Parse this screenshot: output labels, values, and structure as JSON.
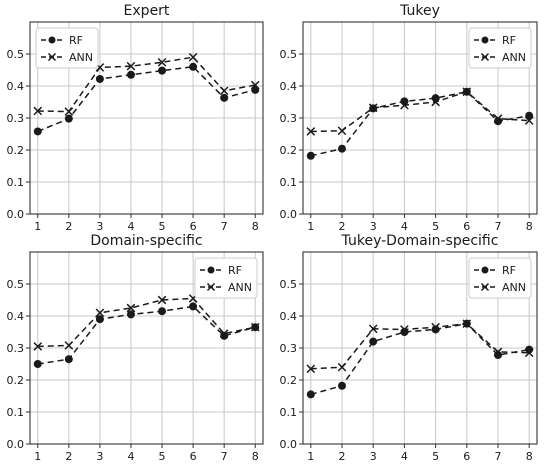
{
  "chart_data": [
    {
      "type": "line",
      "title": "Expert",
      "x": [
        1,
        2,
        3,
        4,
        5,
        6,
        7,
        8
      ],
      "ylim": [
        0.0,
        0.6
      ],
      "yticks": [
        "0.0",
        "0.1",
        "0.2",
        "0.3",
        "0.4",
        "0.5"
      ],
      "grid": true,
      "legend": "top-left",
      "series": [
        {
          "name": "RF",
          "marker": "circle",
          "values": [
            0.258,
            0.298,
            0.422,
            0.435,
            0.448,
            0.46,
            0.363,
            0.388
          ]
        },
        {
          "name": "ANN",
          "marker": "x",
          "values": [
            0.322,
            0.32,
            0.458,
            0.462,
            0.474,
            0.49,
            0.385,
            0.403
          ]
        }
      ]
    },
    {
      "type": "line",
      "title": "Tukey",
      "x": [
        1,
        2,
        3,
        4,
        5,
        6,
        7,
        8
      ],
      "ylim": [
        0.0,
        0.6
      ],
      "yticks": [
        "0.0",
        "0.1",
        "0.2",
        "0.3",
        "0.4",
        "0.5"
      ],
      "grid": true,
      "legend": "top-right",
      "series": [
        {
          "name": "RF",
          "marker": "circle",
          "values": [
            0.182,
            0.204,
            0.33,
            0.352,
            0.362,
            0.382,
            0.29,
            0.307
          ]
        },
        {
          "name": "ANN",
          "marker": "x",
          "values": [
            0.258,
            0.26,
            0.332,
            0.34,
            0.35,
            0.382,
            0.298,
            0.292
          ]
        }
      ]
    },
    {
      "type": "line",
      "title": "Domain-specific",
      "x": [
        1,
        2,
        3,
        4,
        5,
        6,
        7,
        8
      ],
      "ylim": [
        0.0,
        0.6
      ],
      "yticks": [
        "0.0",
        "0.1",
        "0.2",
        "0.3",
        "0.4",
        "0.5"
      ],
      "grid": true,
      "legend": "top-right",
      "series": [
        {
          "name": "RF",
          "marker": "circle",
          "values": [
            0.25,
            0.265,
            0.39,
            0.405,
            0.415,
            0.43,
            0.338,
            0.365
          ]
        },
        {
          "name": "ANN",
          "marker": "x",
          "values": [
            0.305,
            0.308,
            0.41,
            0.425,
            0.45,
            0.455,
            0.345,
            0.365
          ]
        }
      ]
    },
    {
      "type": "line",
      "title": "Tukey-Domain-specific",
      "x": [
        1,
        2,
        3,
        4,
        5,
        6,
        7,
        8
      ],
      "ylim": [
        0.0,
        0.6
      ],
      "yticks": [
        "0.0",
        "0.1",
        "0.2",
        "0.3",
        "0.4",
        "0.5"
      ],
      "grid": true,
      "legend": "top-right",
      "series": [
        {
          "name": "RF",
          "marker": "circle",
          "values": [
            0.155,
            0.182,
            0.32,
            0.35,
            0.358,
            0.376,
            0.278,
            0.295
          ]
        },
        {
          "name": "ANN",
          "marker": "x",
          "values": [
            0.235,
            0.24,
            0.36,
            0.358,
            0.365,
            0.376,
            0.288,
            0.285
          ]
        }
      ]
    }
  ]
}
